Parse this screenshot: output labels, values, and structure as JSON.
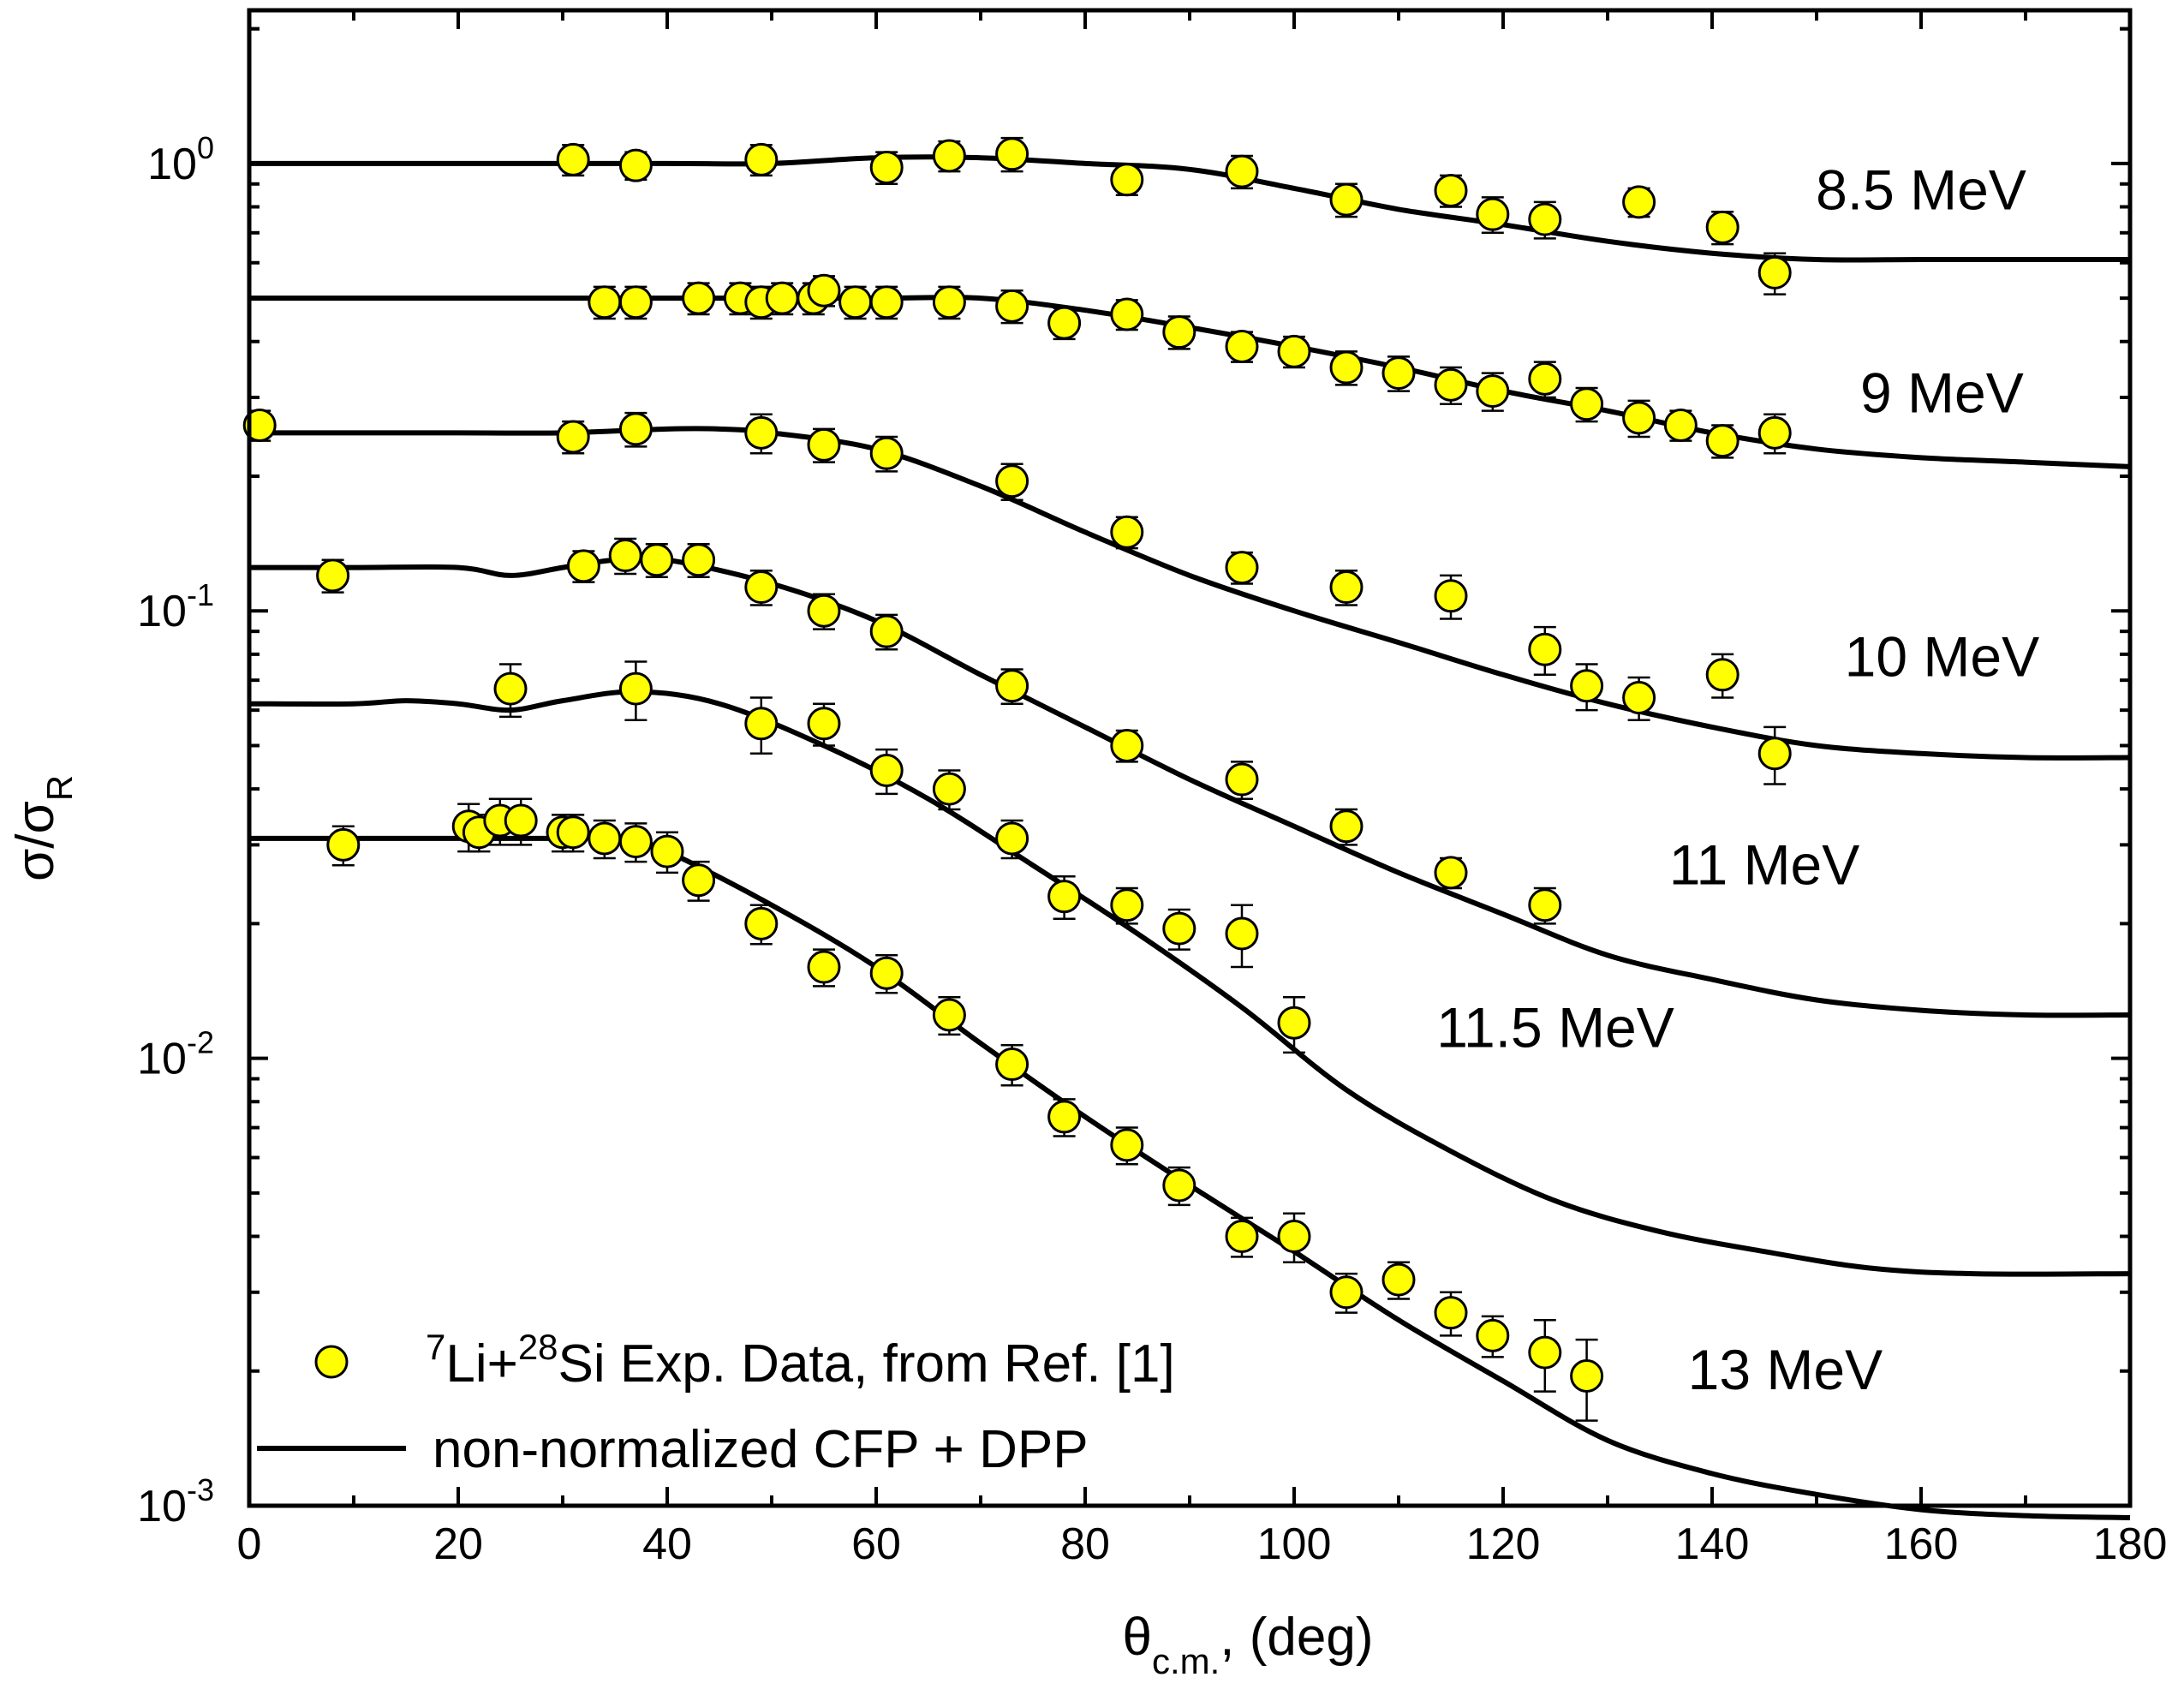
{
  "chart_data": {
    "type": "scatter",
    "xlabel_main": "θ",
    "xlabel_sub": "c.m.",
    "xlabel_rest": ", (deg)",
    "ylabel_main": "σ/σ",
    "ylabel_sub": "R",
    "xlim": [
      0,
      180
    ],
    "ylim": [
      0.001,
      2.2
    ],
    "y_scale": "log",
    "x_ticks": [
      0,
      20,
      40,
      60,
      80,
      100,
      120,
      140,
      160,
      180
    ],
    "y_tick_labels": [
      {
        "value": 1,
        "base": "10",
        "exp": "0"
      },
      {
        "value": 0.1,
        "base": "10",
        "exp": "-1"
      },
      {
        "value": 0.01,
        "base": "10",
        "exp": "-2"
      },
      {
        "value": 0.001,
        "base": "10",
        "exp": "-3"
      }
    ],
    "marker_color": "#ffff00",
    "legend": {
      "position": "bottom-left",
      "data_prefix_sup1": "7",
      "data_mid": "Li+",
      "data_prefix_sup2": "28",
      "data_rest": "Si Exp. Data, from Ref. [1]",
      "line_label": "non-normalized CFP + DPP"
    },
    "series": [
      {
        "name": "8.5 MeV",
        "label_x": 160,
        "label_y": 0.79,
        "curve": [
          [
            0,
            1.0
          ],
          [
            20,
            1.0
          ],
          [
            40,
            1.0
          ],
          [
            50,
            1.0
          ],
          [
            60,
            1.03
          ],
          [
            70,
            1.03
          ],
          [
            80,
            1.0
          ],
          [
            90,
            0.97
          ],
          [
            100,
            0.88
          ],
          [
            110,
            0.79
          ],
          [
            120,
            0.73
          ],
          [
            130,
            0.67
          ],
          [
            140,
            0.63
          ],
          [
            150,
            0.61
          ],
          [
            160,
            0.61
          ],
          [
            170,
            0.61
          ],
          [
            180,
            0.61
          ]
        ],
        "points": [
          [
            31,
            1.02,
            0.08
          ],
          [
            37,
            0.99,
            0.07
          ],
          [
            49,
            1.02,
            0.08
          ],
          [
            61,
            0.98,
            0.08
          ],
          [
            67,
            1.04,
            0.08
          ],
          [
            73,
            1.05,
            0.09
          ],
          [
            84,
            0.92,
            0.07
          ],
          [
            95,
            0.96,
            0.08
          ],
          [
            105,
            0.83,
            0.07
          ],
          [
            115,
            0.87,
            0.07
          ],
          [
            119,
            0.77,
            0.07
          ],
          [
            124,
            0.75,
            0.07
          ],
          [
            133,
            0.82,
            0.06
          ],
          [
            141,
            0.72,
            0.06
          ],
          [
            146,
            0.57,
            0.06
          ]
        ]
      },
      {
        "name": "9 MeV",
        "label_x": 162,
        "label_y": 0.278,
        "curve": [
          [
            0,
            0.5
          ],
          [
            20,
            0.5
          ],
          [
            40,
            0.5
          ],
          [
            60,
            0.5
          ],
          [
            70,
            0.5
          ],
          [
            80,
            0.47
          ],
          [
            90,
            0.43
          ],
          [
            100,
            0.39
          ],
          [
            110,
            0.35
          ],
          [
            120,
            0.31
          ],
          [
            130,
            0.28
          ],
          [
            140,
            0.25
          ],
          [
            150,
            0.23
          ],
          [
            160,
            0.22
          ],
          [
            170,
            0.215
          ],
          [
            180,
            0.21
          ]
        ],
        "points": [
          [
            34,
            0.49,
            0.04
          ],
          [
            37,
            0.49,
            0.04
          ],
          [
            43,
            0.5,
            0.04
          ],
          [
            47,
            0.5,
            0.04
          ],
          [
            49,
            0.49,
            0.04
          ],
          [
            51,
            0.5,
            0.04
          ],
          [
            54,
            0.5,
            0.04
          ],
          [
            55,
            0.52,
            0.04
          ],
          [
            58,
            0.49,
            0.04
          ],
          [
            61,
            0.49,
            0.04
          ],
          [
            67,
            0.49,
            0.04
          ],
          [
            73,
            0.48,
            0.04
          ],
          [
            78,
            0.44,
            0.035
          ],
          [
            84,
            0.46,
            0.035
          ],
          [
            89,
            0.42,
            0.035
          ],
          [
            95,
            0.39,
            0.03
          ],
          [
            100,
            0.38,
            0.03
          ],
          [
            105,
            0.35,
            0.03
          ],
          [
            110,
            0.34,
            0.03
          ],
          [
            115,
            0.32,
            0.03
          ],
          [
            119,
            0.31,
            0.03
          ],
          [
            124,
            0.33,
            0.03
          ],
          [
            128,
            0.29,
            0.025
          ],
          [
            133,
            0.27,
            0.025
          ],
          [
            137,
            0.26,
            0.02
          ],
          [
            141,
            0.24,
            0.02
          ],
          [
            146,
            0.25,
            0.025
          ]
        ]
      },
      {
        "name": "10 MeV",
        "label_x": 162,
        "label_y": 0.0715,
        "curve": [
          [
            0,
            0.25
          ],
          [
            20,
            0.25
          ],
          [
            30,
            0.25
          ],
          [
            40,
            0.255
          ],
          [
            45,
            0.255
          ],
          [
            50,
            0.25
          ],
          [
            60,
            0.23
          ],
          [
            70,
            0.19
          ],
          [
            80,
            0.15
          ],
          [
            90,
            0.12
          ],
          [
            100,
            0.1
          ],
          [
            110,
            0.085
          ],
          [
            120,
            0.072
          ],
          [
            130,
            0.062
          ],
          [
            140,
            0.055
          ],
          [
            150,
            0.05
          ],
          [
            160,
            0.048
          ],
          [
            170,
            0.047
          ],
          [
            180,
            0.047
          ]
        ],
        "points": [
          [
            1,
            0.26,
            0.02
          ],
          [
            31,
            0.245,
            0.02
          ],
          [
            37,
            0.255,
            0.022
          ],
          [
            49,
            0.25,
            0.025
          ],
          [
            55,
            0.235,
            0.02
          ],
          [
            61,
            0.225,
            0.02
          ],
          [
            73,
            0.195,
            0.018
          ],
          [
            84,
            0.15,
            0.012
          ],
          [
            95,
            0.125,
            0.01
          ],
          [
            105,
            0.113,
            0.01
          ],
          [
            115,
            0.108,
            0.012
          ],
          [
            124,
            0.082,
            0.01
          ],
          [
            128,
            0.068,
            0.008
          ],
          [
            133,
            0.064,
            0.007
          ],
          [
            141,
            0.072,
            0.008
          ],
          [
            146,
            0.048,
            0.007
          ]
        ]
      },
      {
        "name": "11 MeV",
        "label_x": 145,
        "label_y": 0.0245,
        "curve": [
          [
            0,
            0.125
          ],
          [
            10,
            0.125
          ],
          [
            20,
            0.125
          ],
          [
            25,
            0.12
          ],
          [
            30,
            0.125
          ],
          [
            35,
            0.13
          ],
          [
            40,
            0.13
          ],
          [
            50,
            0.115
          ],
          [
            60,
            0.095
          ],
          [
            70,
            0.072
          ],
          [
            80,
            0.055
          ],
          [
            90,
            0.042
          ],
          [
            100,
            0.033
          ],
          [
            110,
            0.026
          ],
          [
            120,
            0.021
          ],
          [
            130,
            0.017
          ],
          [
            140,
            0.015
          ],
          [
            150,
            0.0135
          ],
          [
            160,
            0.0128
          ],
          [
            170,
            0.0125
          ],
          [
            180,
            0.0125
          ]
        ],
        "points": [
          [
            8,
            0.12,
            0.01
          ],
          [
            32,
            0.126,
            0.01
          ],
          [
            36,
            0.133,
            0.012
          ],
          [
            39,
            0.13,
            0.011
          ],
          [
            43,
            0.13,
            0.011
          ],
          [
            49,
            0.113,
            0.01
          ],
          [
            55,
            0.1,
            0.009
          ],
          [
            61,
            0.09,
            0.008
          ],
          [
            73,
            0.068,
            0.006
          ],
          [
            84,
            0.05,
            0.004
          ],
          [
            95,
            0.042,
            0.004
          ],
          [
            105,
            0.033,
            0.003
          ],
          [
            115,
            0.026,
            0.002
          ],
          [
            124,
            0.022,
            0.002
          ]
        ]
      },
      {
        "name": "11.5 MeV",
        "label_x": 125,
        "label_y": 0.0106,
        "curve": [
          [
            0,
            0.062
          ],
          [
            10,
            0.062
          ],
          [
            15,
            0.063
          ],
          [
            20,
            0.062
          ],
          [
            25,
            0.06
          ],
          [
            30,
            0.063
          ],
          [
            37,
            0.066
          ],
          [
            45,
            0.062
          ],
          [
            55,
            0.05
          ],
          [
            65,
            0.038
          ],
          [
            75,
            0.027
          ],
          [
            85,
            0.019
          ],
          [
            95,
            0.013
          ],
          [
            105,
            0.0085
          ],
          [
            115,
            0.0062
          ],
          [
            125,
            0.0048
          ],
          [
            135,
            0.0041
          ],
          [
            145,
            0.0037
          ],
          [
            155,
            0.0034
          ],
          [
            165,
            0.0033
          ],
          [
            180,
            0.0033
          ]
        ],
        "points": [
          [
            25,
            0.067,
            0.009
          ],
          [
            37,
            0.067,
            0.01
          ],
          [
            49,
            0.056,
            0.008
          ],
          [
            55,
            0.056,
            0.006
          ],
          [
            61,
            0.044,
            0.005
          ],
          [
            67,
            0.04,
            0.004
          ],
          [
            73,
            0.031,
            0.003
          ],
          [
            78,
            0.023,
            0.0025
          ],
          [
            84,
            0.022,
            0.002
          ],
          [
            89,
            0.0195,
            0.002
          ],
          [
            95,
            0.019,
            0.003
          ],
          [
            100,
            0.012,
            0.0017
          ]
        ]
      },
      {
        "name": "13 MeV",
        "label_x": 147,
        "label_y": 0.00182,
        "curve": [
          [
            0,
            0.031
          ],
          [
            10,
            0.031
          ],
          [
            15,
            0.031
          ],
          [
            20,
            0.031
          ],
          [
            30,
            0.031
          ],
          [
            36,
            0.031
          ],
          [
            40,
            0.029
          ],
          [
            50,
            0.022
          ],
          [
            60,
            0.016
          ],
          [
            70,
            0.0108
          ],
          [
            80,
            0.0074
          ],
          [
            90,
            0.0052
          ],
          [
            100,
            0.0037
          ],
          [
            110,
            0.0026
          ],
          [
            120,
            0.0019
          ],
          [
            130,
            0.0014
          ],
          [
            140,
            0.00118
          ],
          [
            150,
            0.00106
          ],
          [
            160,
            0.00098
          ],
          [
            170,
            0.00095
          ],
          [
            180,
            0.00094
          ]
        ],
        "points": [
          [
            9,
            0.03,
            0.003
          ],
          [
            21,
            0.033,
            0.004
          ],
          [
            22,
            0.032,
            0.003
          ],
          [
            24,
            0.034,
            0.004
          ],
          [
            26,
            0.034,
            0.004
          ],
          [
            30,
            0.032,
            0.003
          ],
          [
            31,
            0.032,
            0.003
          ],
          [
            34,
            0.031,
            0.003
          ],
          [
            37,
            0.0305,
            0.003
          ],
          [
            40,
            0.029,
            0.003
          ],
          [
            43,
            0.025,
            0.0025
          ],
          [
            49,
            0.02,
            0.002
          ],
          [
            55,
            0.016,
            0.0015
          ],
          [
            61,
            0.0155,
            0.0015
          ],
          [
            67,
            0.0125,
            0.0012
          ],
          [
            73,
            0.0097,
            0.001
          ],
          [
            78,
            0.0074,
            0.0007
          ],
          [
            84,
            0.0064,
            0.0006
          ],
          [
            89,
            0.0052,
            0.0005
          ],
          [
            95,
            0.004,
            0.0004
          ],
          [
            100,
            0.004,
            0.0005
          ],
          [
            105,
            0.003,
            0.0003
          ],
          [
            110,
            0.0032,
            0.0003
          ],
          [
            115,
            0.0027,
            0.0003
          ],
          [
            119,
            0.0024,
            0.00025
          ],
          [
            124,
            0.0022,
            0.0004
          ],
          [
            128,
            0.00195,
            0.0004
          ]
        ]
      }
    ]
  }
}
